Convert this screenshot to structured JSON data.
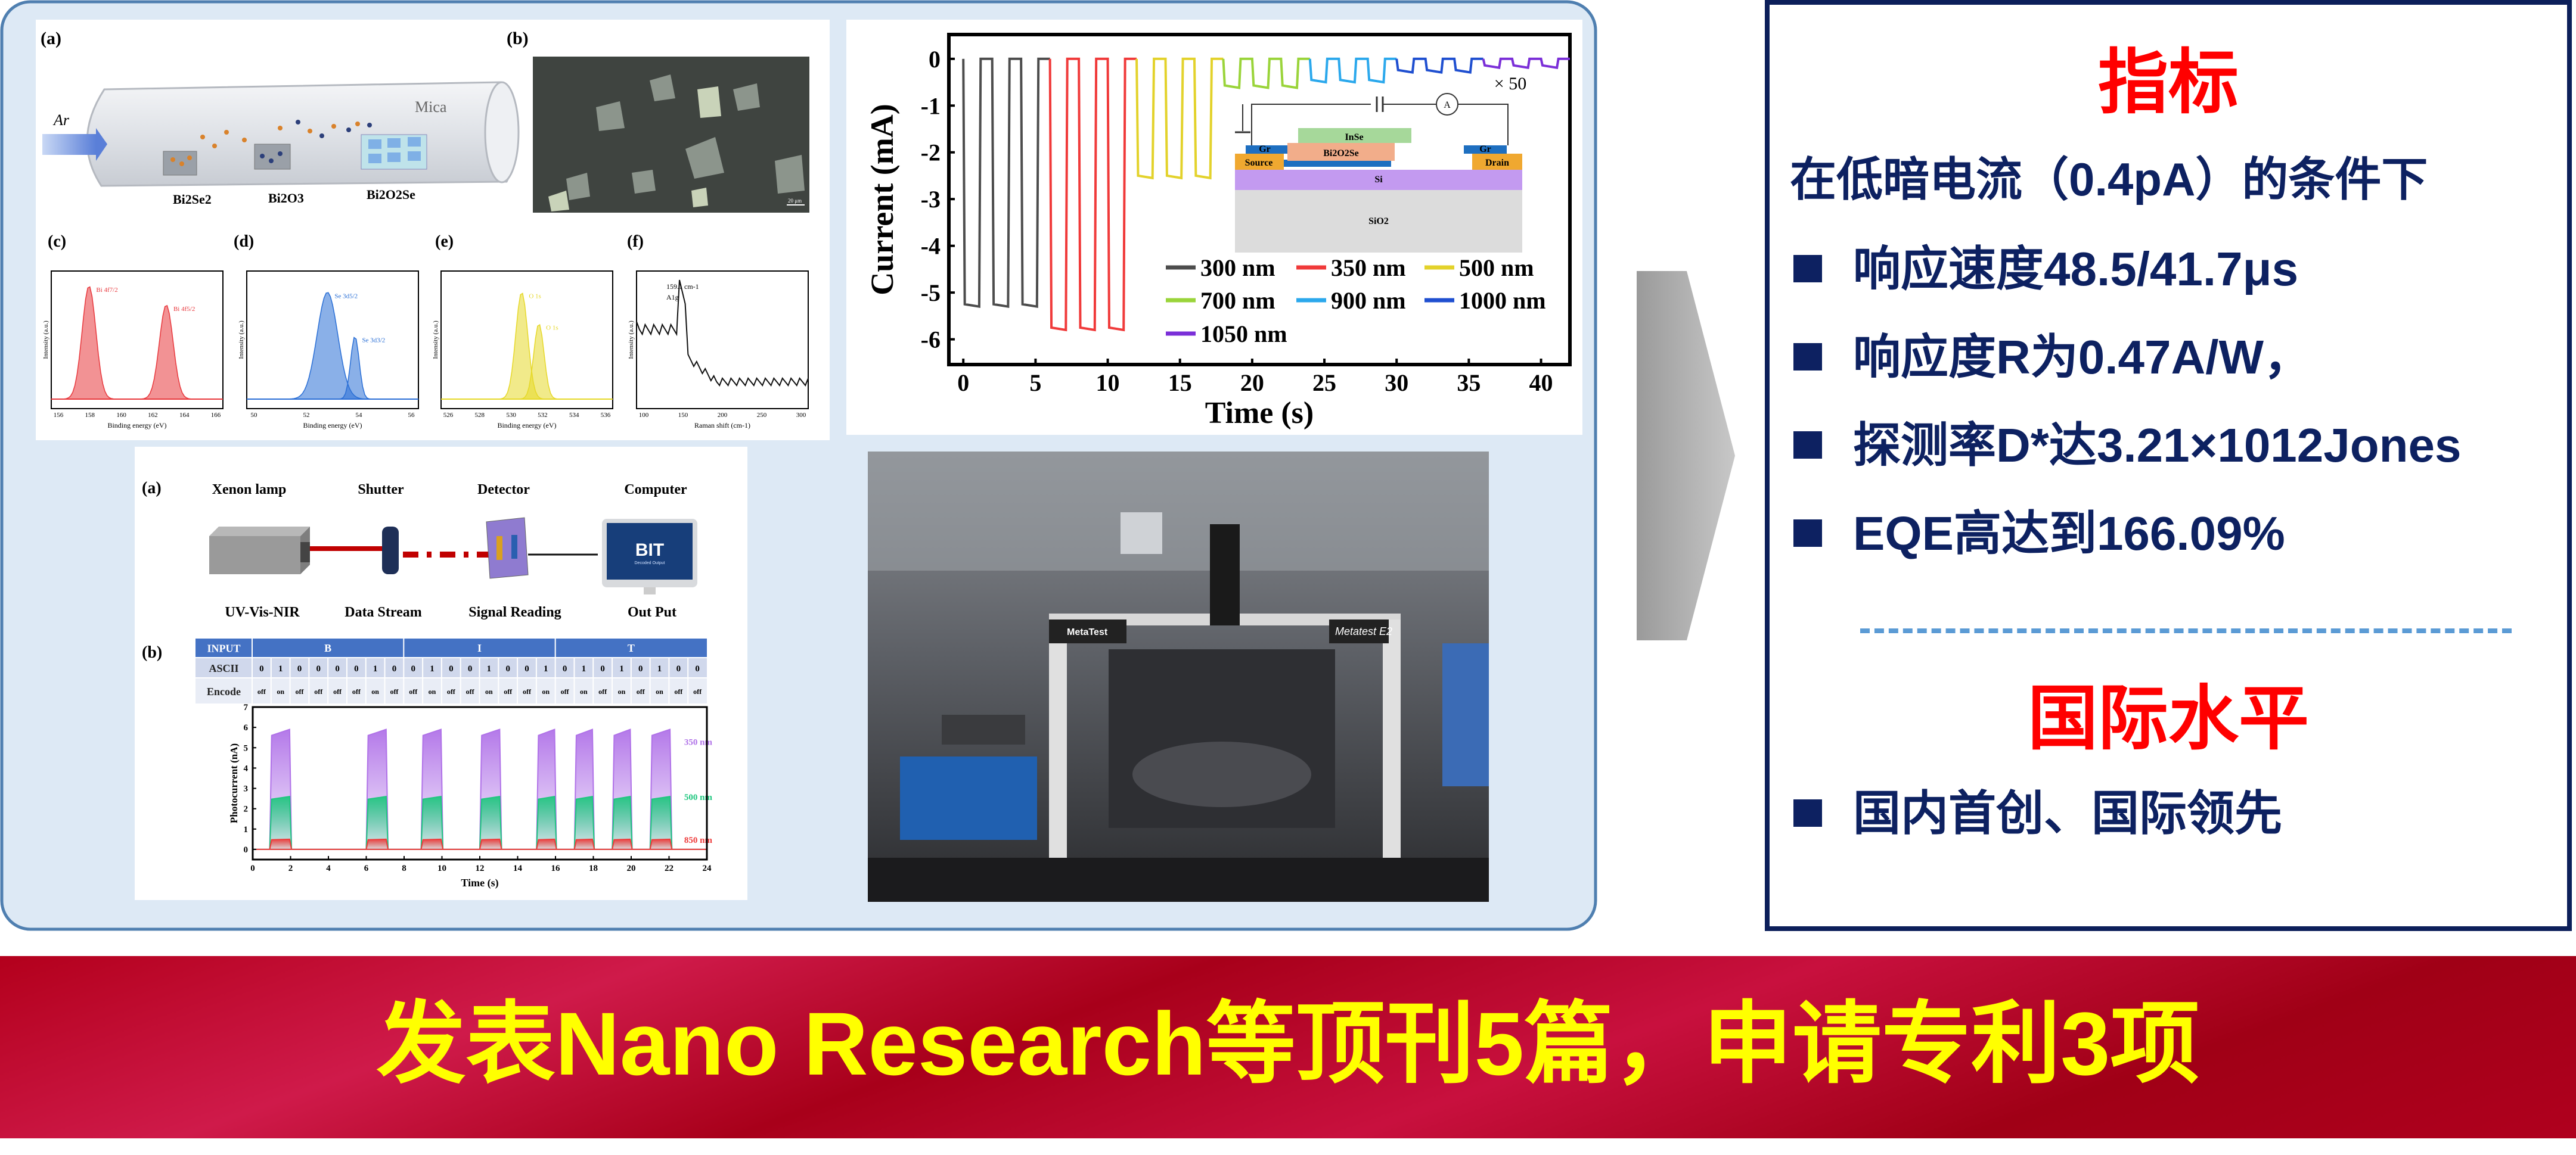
{
  "colors": {
    "panel_bg": "#dde9f5",
    "panel_border": "#4f7fb0",
    "navy": "#0d2161",
    "red": "#ff0000",
    "banner_text": "#ffff00",
    "dash": "#5b9bd5"
  },
  "figure_growth": {
    "label_a": "(a)",
    "label_b": "(b)",
    "gas": "Ar",
    "substrate": "Mica",
    "sources": [
      "Bi2Se2",
      "Bi2O3",
      "Bi2O2Se"
    ],
    "scale_bar": "20 μm",
    "xps": [
      {
        "label": "(c)",
        "ylabel": "Intensity (a.u.)",
        "xlabel": "Binding energy (eV)",
        "ticks": [
          "156",
          "158",
          "160",
          "162",
          "164",
          "166"
        ],
        "color": "#e8383d",
        "peaks": [
          "Bi 4f7/2",
          "Bi 4f5/2"
        ]
      },
      {
        "label": "(d)",
        "ylabel": "Intensity (a.u.)",
        "xlabel": "Binding energy (eV)",
        "ticks": [
          "50",
          "52",
          "54",
          "56"
        ],
        "color": "#2a6fd6",
        "peaks": [
          "Se 3d5/2",
          "Se 3d3/2"
        ]
      },
      {
        "label": "(e)",
        "ylabel": "Intensity (a.u.)",
        "xlabel": "Binding energy (eV)",
        "ticks": [
          "526",
          "528",
          "530",
          "532",
          "534",
          "536"
        ],
        "color": "#e6d829",
        "peaks": [
          "O 1s",
          "O 1s"
        ]
      },
      {
        "label": "(f)",
        "ylabel": "Intensity (a.u.)",
        "xlabel": "Raman shift (cm-1)",
        "ticks": [
          "100",
          "150",
          "200",
          "250",
          "300"
        ],
        "color": "#111111",
        "peaks": [
          "159.1 cm-1",
          "A1g"
        ]
      }
    ]
  },
  "chart_data": [
    {
      "type": "line",
      "title": "",
      "xlabel": "Time (s)",
      "ylabel": "Current (mA)",
      "xlim": [
        -1,
        42
      ],
      "ylim": [
        -6.54,
        0.52
      ],
      "xticks": [
        0,
        5,
        10,
        15,
        20,
        25,
        30,
        35,
        40
      ],
      "yticks": [
        0,
        -1,
        -2,
        -3,
        -4,
        -5,
        -6
      ],
      "annotation": "× 50",
      "legend": "inside-bottom-right",
      "series": [
        {
          "name": "300 nm",
          "color": "#4d4d4d",
          "interval": [
            0,
            6
          ],
          "on_level": -5.25
        },
        {
          "name": "350 nm",
          "color": "#f03a3a",
          "interval": [
            6,
            12
          ],
          "on_level": -5.75
        },
        {
          "name": "500 nm",
          "color": "#e3d22b",
          "interval": [
            12,
            18
          ],
          "on_level": -2.5
        },
        {
          "name": "700 nm",
          "color": "#9ad43a",
          "interval": [
            18,
            24
          ],
          "on_level": -0.57
        },
        {
          "name": "900 nm",
          "color": "#2ba8ec",
          "interval": [
            24,
            30
          ],
          "on_level": -0.45
        },
        {
          "name": "1000 nm",
          "color": "#1f4fd0",
          "interval": [
            30,
            36
          ],
          "on_level": -0.24
        },
        {
          "name": "1050 nm",
          "color": "#7b2fd8",
          "interval": [
            36,
            42
          ],
          "on_level": -0.14
        }
      ],
      "inset": {
        "layers": [
          "InSe",
          "Bi2O2Se",
          "Gr",
          "Gr",
          "Source",
          "Drain",
          "Si",
          "SiO2"
        ],
        "meter": "A"
      }
    },
    {
      "type": "area",
      "title": "",
      "xlabel": "Time (s)",
      "ylabel": "Photocurrent (nA)",
      "xlim": [
        0,
        24
      ],
      "ylim": [
        -0.5,
        7
      ],
      "xticks": [
        0,
        2,
        4,
        6,
        8,
        10,
        12,
        14,
        16,
        18,
        20,
        22,
        24
      ],
      "yticks": [
        0,
        1,
        2,
        3,
        4,
        5,
        6,
        7
      ],
      "on_intervals": [
        [
          0.9,
          2
        ],
        [
          6,
          7.1
        ],
        [
          8.9,
          10
        ],
        [
          12,
          13.1
        ],
        [
          15,
          16
        ],
        [
          17,
          18
        ],
        [
          19,
          20
        ],
        [
          21,
          22.1
        ]
      ],
      "series": [
        {
          "name": "350 nm",
          "color": "#b072e8",
          "on_level": 5.9
        },
        {
          "name": "500 nm",
          "color": "#1fc77f",
          "on_level": 2.6
        },
        {
          "name": "850 nm",
          "color": "#ee3b3b",
          "on_level": 0.5
        }
      ]
    }
  ],
  "figure_encoding": {
    "label_a": "(a)",
    "label_b": "(b)",
    "components": [
      "Xenon lamp",
      "Shutter",
      "Detector",
      "Computer"
    ],
    "functions": [
      "UV-Vis-NIR",
      "Data Stream",
      "Signal Reading",
      "Out Put"
    ],
    "monitor_text": "BIT",
    "monitor_sub": "Decoded Output",
    "table": {
      "headers": [
        "INPUT",
        "ASCII",
        "Encode"
      ],
      "letters": [
        "B",
        "I",
        "T"
      ],
      "bits": [
        "0",
        "1",
        "0",
        "0",
        "0",
        "0",
        "1",
        "0",
        "0",
        "1",
        "0",
        "0",
        "1",
        "0",
        "0",
        "1",
        "0",
        "1",
        "0",
        "1",
        "0",
        "1",
        "0",
        "0"
      ],
      "encode": [
        "off",
        "on",
        "off",
        "off",
        "off",
        "off",
        "on",
        "off",
        "off",
        "on",
        "off",
        "off",
        "on",
        "off",
        "off",
        "on",
        "off",
        "on",
        "off",
        "on",
        "off",
        "on",
        "off",
        "off"
      ]
    }
  },
  "photo": {
    "brand": "MetaTest",
    "model": "Metatest E2"
  },
  "right_panel": {
    "title": "指标",
    "condition": "在低暗电流（0.4pA）的条件下",
    "metrics": [
      "响应速度48.5/41.7μs",
      "响应度R为0.47A/W，",
      "探测率D*达3.21×1012Jones",
      "EQE高达到166.09%"
    ],
    "level_title": "国际水平",
    "level_items": [
      "国内首创、国际领先"
    ]
  },
  "banner": {
    "text": "发表Nano Research等顶刊5篇，申请专利3项"
  }
}
